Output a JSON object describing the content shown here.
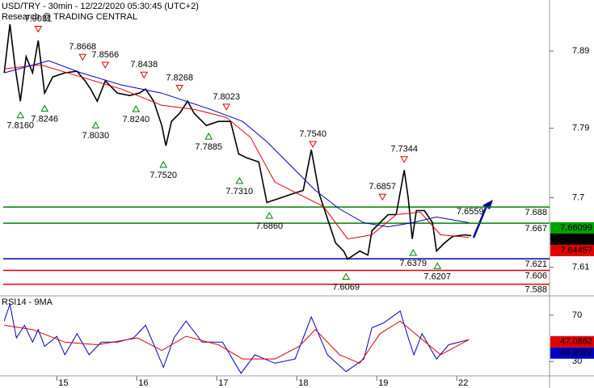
{
  "chart_data": [
    {
      "type": "line",
      "title": "USD/TRY - 30min - 12/22/2020 05:30:45 (UTC+2)",
      "subtitle": "Research @ TRADING CENTRAL",
      "xlim": [
        0.29,
        7.16
      ],
      "xticks": [
        {
          "value": 1,
          "label": "15"
        },
        {
          "value": 2,
          "label": "16"
        },
        {
          "value": 3,
          "label": "17"
        },
        {
          "value": 4,
          "label": "18"
        },
        {
          "value": 5,
          "label": "19"
        },
        {
          "value": 6,
          "label": "22"
        }
      ],
      "ylim": [
        7.573,
        7.956
      ],
      "yticks": [
        7.61,
        7.7,
        7.79,
        7.89
      ],
      "series": [
        {
          "color": "#000000",
          "x": [
            0.343,
            0.414,
            0.475,
            0.545,
            0.616,
            0.697,
            0.768,
            0.848,
            0.949,
            1.101,
            1.253,
            1.354,
            1.424,
            1.505,
            1.606,
            1.758,
            1.909,
            2.03,
            2.111,
            2.212,
            2.313,
            2.364,
            2.434,
            2.535,
            2.636,
            2.717,
            2.869,
            3.02,
            3.172,
            3.273,
            3.374,
            3.525,
            3.626,
            3.778,
            3.929,
            4.081,
            4.182,
            4.283,
            4.384,
            4.485,
            4.586,
            4.636,
            4.788,
            4.889,
            4.939,
            5.04,
            5.141,
            5.242,
            5.343,
            5.394,
            5.444,
            5.495,
            5.596,
            5.697,
            5.747,
            5.848,
            5.949,
            6.101,
            6.182
          ],
          "values": [
            7.8617,
            7.9246,
            7.8722,
            7.825,
            7.8827,
            7.8617,
            7.9036,
            7.8355,
            7.8564,
            7.8617,
            7.8638,
            7.8512,
            7.8407,
            7.825,
            7.8512,
            7.8355,
            7.8323,
            7.8355,
            7.8407,
            7.825,
            7.7935,
            7.7673,
            7.7988,
            7.8093,
            7.825,
            7.8093,
            7.7935,
            7.7988,
            7.7988,
            7.7568,
            7.7516,
            7.7463,
            7.6939,
            7.6991,
            7.7044,
            7.7096,
            7.7621,
            7.7044,
            7.6729,
            7.6415,
            7.631,
            7.6205,
            7.631,
            7.6257,
            7.6572,
            7.6677,
            7.6782,
            7.6782,
            7.7358,
            7.6991,
            7.6467,
            7.6834,
            7.6834,
            7.6677,
            7.631,
            7.6415,
            7.6499,
            7.652,
            7.6509
          ]
        },
        {
          "color": "#e00000",
          "x": [
            0.343,
            0.798,
            1.303,
            1.808,
            2.313,
            2.717,
            3.121,
            3.424,
            3.727,
            4.03,
            4.333,
            4.636,
            4.939,
            5.242,
            5.545,
            5.798,
            6.152
          ],
          "values": [
            7.8669,
            7.8722,
            7.8564,
            7.8407,
            7.8197,
            7.8145,
            7.804,
            7.7778,
            7.7201,
            7.7044,
            7.6887,
            7.6467,
            7.652,
            7.6782,
            7.6813,
            7.652,
            7.6488
          ]
        },
        {
          "color": "#0000c0",
          "x": [
            0.343,
            0.899,
            1.303,
            1.808,
            2.313,
            2.919,
            3.323,
            3.626,
            3.929,
            4.232,
            4.535,
            4.838,
            5.141,
            5.444,
            5.747,
            6.152
          ],
          "values": [
            7.8617,
            7.8774,
            7.8617,
            7.846,
            7.8355,
            7.8145,
            7.7988,
            7.7726,
            7.7411,
            7.7096,
            7.6855,
            7.6677,
            7.6624,
            7.6677,
            7.675,
            7.6677
          ]
        }
      ],
      "levels": [
        {
          "value": 7.688,
          "color": "#008000"
        },
        {
          "value": 7.667,
          "color": "#008000"
        },
        {
          "value": 7.621,
          "color": "#0000a0"
        },
        {
          "value": 7.606,
          "color": "#e00000"
        },
        {
          "value": 7.588,
          "color": "#e00000"
        }
      ],
      "price_boxes": [
        {
          "value": 7.66099,
          "color": "#00a000"
        },
        {
          "value": 7.64689,
          "color": "#000000"
        },
        {
          "value": 7.64457,
          "color": "#e00000"
        }
      ],
      "annotations": [
        {
          "x": 0.768,
          "value": 7.9031,
          "label": "7.9031",
          "marker": "down"
        },
        {
          "x": 1.323,
          "value": 7.8668,
          "label": "7.8668",
          "marker": "down"
        },
        {
          "x": 1.606,
          "value": 7.8566,
          "label": "7.8566",
          "marker": "down"
        },
        {
          "x": 2.091,
          "value": 7.8438,
          "label": "7.8438",
          "marker": "down"
        },
        {
          "x": 2.535,
          "value": 7.8268,
          "label": "7.8268",
          "marker": "down"
        },
        {
          "x": 3.121,
          "value": 7.8023,
          "label": "7.8023",
          "marker": "down"
        },
        {
          "x": 4.202,
          "value": 7.754,
          "label": "7.7540",
          "marker": "down"
        },
        {
          "x": 5.343,
          "value": 7.7344,
          "label": "7.7344",
          "marker": "down"
        },
        {
          "x": 5.071,
          "value": 7.6857,
          "label": "7.6857",
          "marker": "down"
        },
        {
          "x": 0.545,
          "value": 7.816,
          "label": "7.8160",
          "marker": "up"
        },
        {
          "x": 0.848,
          "value": 7.8246,
          "label": "7.8246",
          "marker": "up"
        },
        {
          "x": 1.485,
          "value": 7.803,
          "label": "7.8030",
          "marker": "up"
        },
        {
          "x": 1.99,
          "value": 7.824,
          "label": "7.8240",
          "marker": "up"
        },
        {
          "x": 2.899,
          "value": 7.7885,
          "label": "7.7885",
          "marker": "up"
        },
        {
          "x": 2.333,
          "value": 7.752,
          "label": "7.7520",
          "marker": "up"
        },
        {
          "x": 3.283,
          "value": 7.731,
          "label": "7.7310",
          "marker": "up"
        },
        {
          "x": 3.657,
          "value": 7.686,
          "label": "7.6860",
          "marker": "up"
        },
        {
          "x": 4.616,
          "value": 7.6069,
          "label": "7.6069",
          "marker": "up"
        },
        {
          "x": 5.455,
          "value": 7.6379,
          "label": "7.6379",
          "marker": "up"
        },
        {
          "x": 5.758,
          "value": 7.6207,
          "label": "7.6207",
          "marker": "up"
        }
      ],
      "target_label": "7.6559"
    },
    {
      "type": "line",
      "title": "RSI14 - 9MA",
      "xlim": [
        0.29,
        7.16
      ],
      "ylim": [
        17.6,
        86.7
      ],
      "yticks": [
        30,
        70
      ],
      "series": [
        {
          "color": "#0000c0",
          "x": [
            0.343,
            0.414,
            0.495,
            0.596,
            0.697,
            0.768,
            0.848,
            1.0,
            1.101,
            1.253,
            1.404,
            1.556,
            1.758,
            1.96,
            2.111,
            2.232,
            2.333,
            2.465,
            2.616,
            2.818,
            3.071,
            3.303,
            3.475,
            3.727,
            3.98,
            4.182,
            4.384,
            4.616,
            4.838,
            4.939,
            5.091,
            5.293,
            5.394,
            5.465,
            5.566,
            5.747,
            5.899,
            6.152
          ],
          "values": [
            64.9,
            79.5,
            50.4,
            61.3,
            46.7,
            57.6,
            43.1,
            51.8,
            35.8,
            54.0,
            35.8,
            46.7,
            46.7,
            50.4,
            61.3,
            41.6,
            24.9,
            50.4,
            64.9,
            46.7,
            46.7,
            19.8,
            35.8,
            28.5,
            32.2,
            68.5,
            35.8,
            21.3,
            32.2,
            59.1,
            63.5,
            73.6,
            50.4,
            35.8,
            54.0,
            32.2,
            44.5,
            48.9
          ]
        },
        {
          "color": "#e00000",
          "x": [
            0.343,
            0.697,
            1.101,
            1.505,
            2.01,
            2.313,
            2.616,
            3.02,
            3.323,
            3.727,
            4.03,
            4.232,
            4.535,
            4.788,
            5.04,
            5.293,
            5.545,
            5.798,
            6.152
          ],
          "values": [
            61.3,
            57.6,
            46.7,
            44.5,
            50.4,
            39.5,
            51.8,
            44.5,
            32.2,
            32.2,
            43.1,
            57.6,
            35.8,
            28.5,
            54.0,
            64.9,
            50.4,
            35.8,
            48.9
          ]
        }
      ],
      "price_boxes": [
        {
          "value": 47.0862,
          "color": "#e00000"
        },
        {
          "value": 46.9022,
          "color": "#0000c0"
        }
      ]
    }
  ]
}
